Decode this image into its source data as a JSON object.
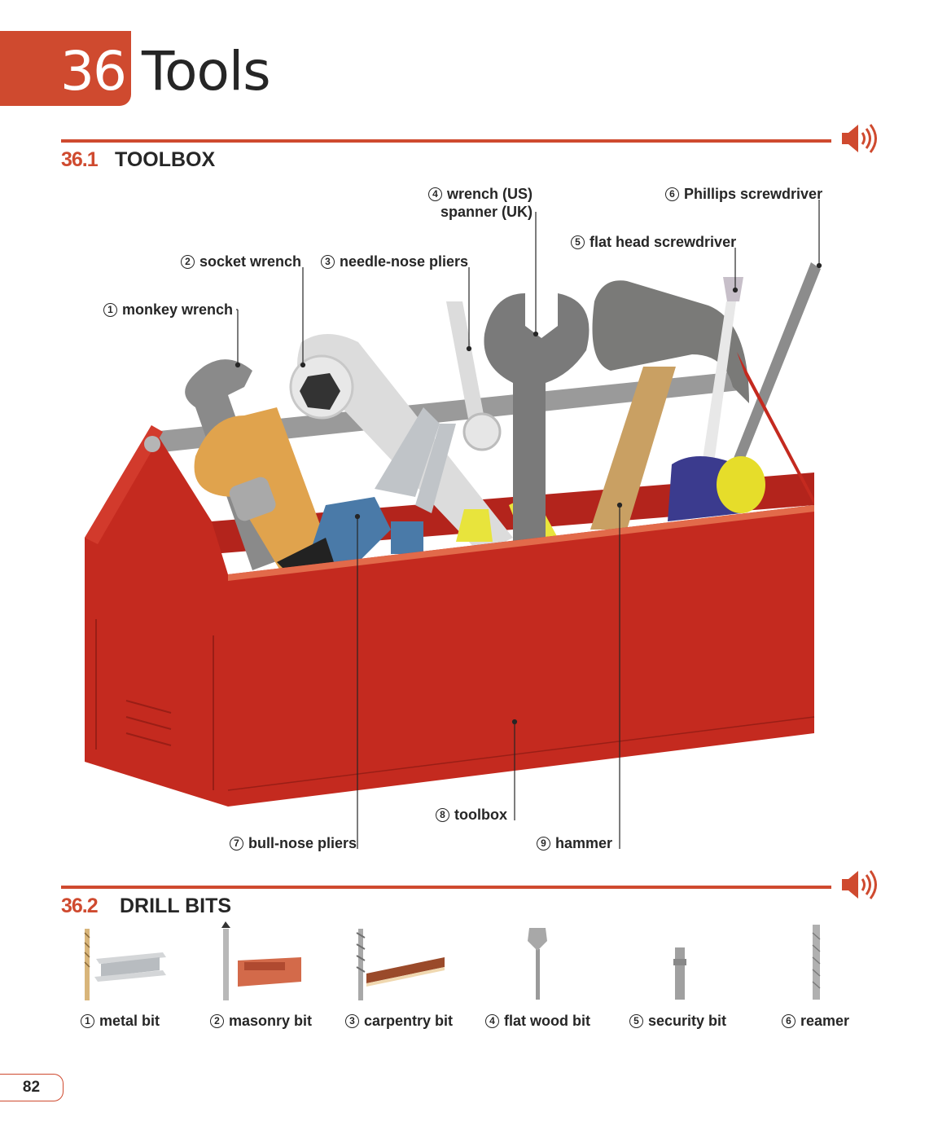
{
  "chapter": {
    "number": "36",
    "title": "Tools"
  },
  "sections": [
    {
      "number": "36.1",
      "title": "TOOLBOX"
    },
    {
      "number": "36.2",
      "title": "DRILL BITS"
    }
  ],
  "toolbox_labels": [
    {
      "num": "1",
      "text": "monkey wrench"
    },
    {
      "num": "2",
      "text": "socket wrench"
    },
    {
      "num": "3",
      "text": "needle-nose pliers"
    },
    {
      "num": "4",
      "text": "wrench (US)",
      "text2": "spanner (UK)"
    },
    {
      "num": "5",
      "text": "flat head screwdriver"
    },
    {
      "num": "6",
      "text": "Phillips screwdriver"
    },
    {
      "num": "7",
      "text": "bull-nose pliers"
    },
    {
      "num": "8",
      "text": "toolbox"
    },
    {
      "num": "9",
      "text": "hammer"
    }
  ],
  "drill_bits": [
    {
      "num": "1",
      "text": "metal bit"
    },
    {
      "num": "2",
      "text": "masonry bit"
    },
    {
      "num": "3",
      "text": "carpentry bit"
    },
    {
      "num": "4",
      "text": "flat wood bit"
    },
    {
      "num": "5",
      "text": "security bit"
    },
    {
      "num": "6",
      "text": "reamer"
    }
  ],
  "page_number": "82",
  "icons": [
    "speaker-icon"
  ],
  "colors": {
    "accent": "#cf4a2f",
    "toolbox_red": "#c42a1f"
  }
}
